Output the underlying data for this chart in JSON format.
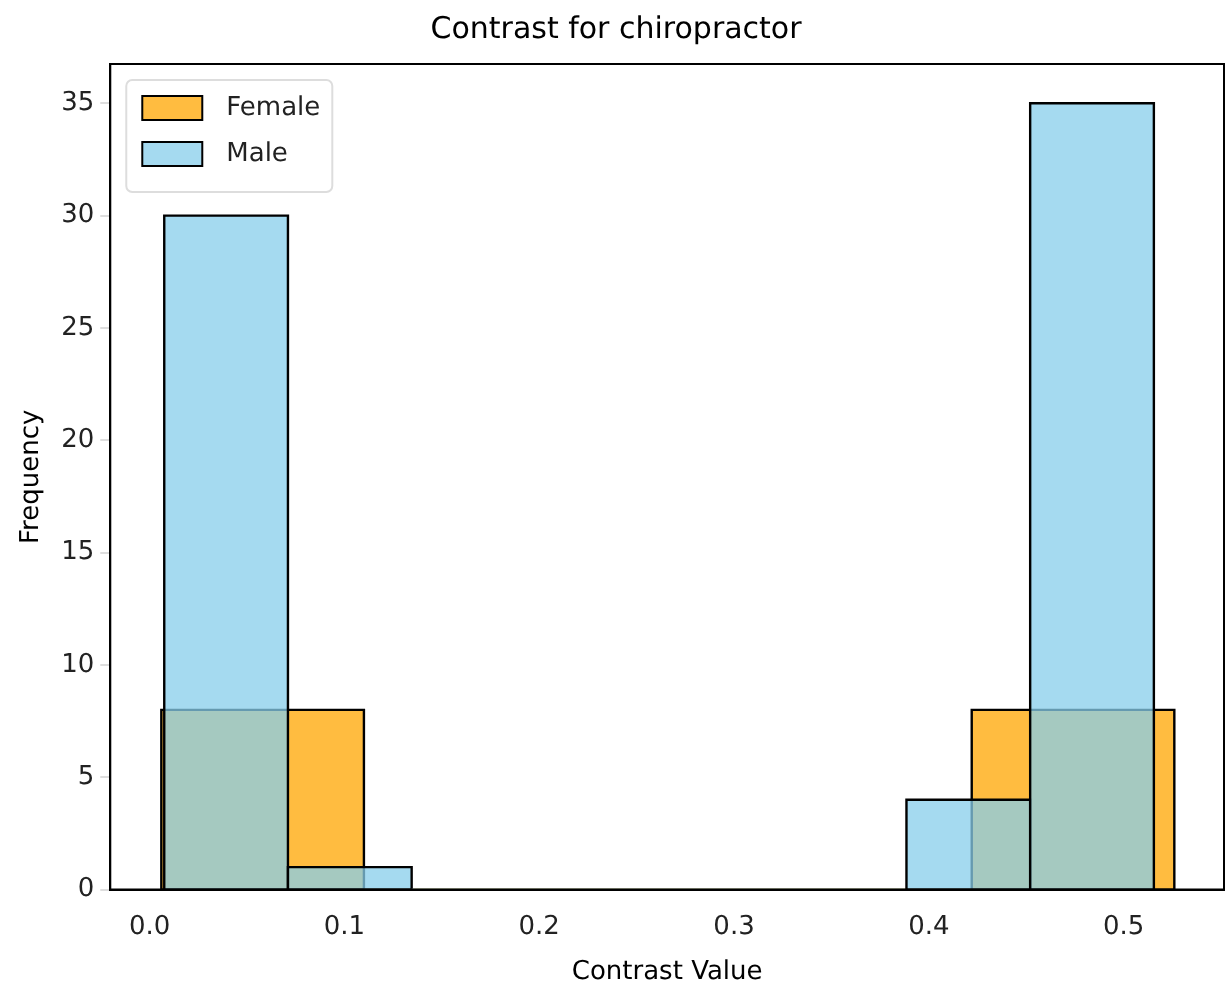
{
  "chart_data": {
    "type": "histogram",
    "title": "Contrast for chiropractor",
    "xlabel": "Contrast Value",
    "ylabel": "Frequency",
    "bins": [
      0.006,
      0.11,
      0.214,
      0.318,
      0.422,
      0.526
    ],
    "series": [
      {
        "name": "Female",
        "color": "#ffa500",
        "values": [
          8,
          0,
          0,
          0,
          8
        ]
      },
      {
        "name": "Male",
        "color": "#87ceeb",
        "bins": [
          0.0075,
          0.071,
          0.1345,
          0.198,
          0.2615,
          0.325,
          0.3885,
          0.452,
          0.5155
        ],
        "values": [
          30,
          1,
          0,
          0,
          0,
          0,
          4,
          35
        ]
      }
    ],
    "xlim": [
      -0.0202,
      0.5515
    ],
    "xticks": [
      {
        "value": 0,
        "label": "0.0"
      },
      {
        "value": 0.1,
        "label": "0.1"
      },
      {
        "value": 0.2,
        "label": "0.2"
      },
      {
        "value": 0.3,
        "label": "0.3"
      },
      {
        "value": 0.4,
        "label": "0.4"
      },
      {
        "value": 0.5,
        "label": "0.5"
      }
    ],
    "ylim": [
      0,
      36.75
    ],
    "yticks": [
      0,
      5,
      10,
      15,
      20,
      25,
      30,
      35
    ],
    "legend": "top left",
    "grid": false
  }
}
